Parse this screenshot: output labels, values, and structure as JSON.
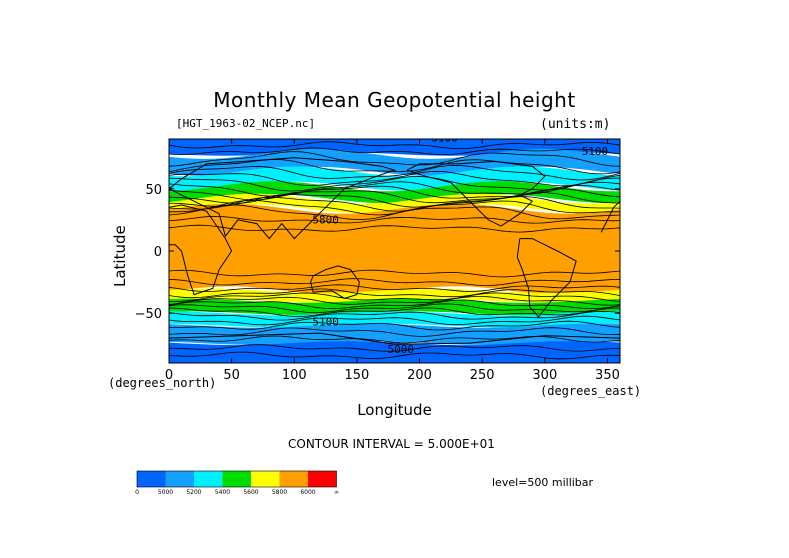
{
  "chart_data": {
    "type": "heatmap",
    "title": "Monthly Mean Geopotential height",
    "file_label": "[HGT_1963-02_NCEP.nc]",
    "units_label": "(units:m)",
    "xlabel": "Longitude",
    "ylabel": "Latitude",
    "x_unit_label": "(degrees_east)",
    "y_unit_label": "(degrees_north)",
    "xlim": [
      0,
      360
    ],
    "ylim": [
      -90,
      90
    ],
    "x_ticks": [
      0,
      50,
      100,
      150,
      200,
      250,
      300,
      350
    ],
    "y_ticks": [
      -50,
      0,
      50
    ],
    "contour_interval_label": "CONTOUR INTERVAL = 5.000E+01",
    "level_label": "level=500 millibar",
    "contour_labels": [
      "5100",
      "5800",
      "5000",
      "5100",
      "5100"
    ],
    "colorbar": {
      "colors": [
        "#0064ff",
        "#14a0ff",
        "#00f0ff",
        "#00dc00",
        "#ffff00",
        "#ffa000",
        "#ff0000"
      ],
      "tick_labels": [
        "0",
        "5000",
        "5200",
        "5400",
        "5600",
        "5800",
        "6000",
        "∞"
      ]
    },
    "zonal_bands": [
      {
        "lat_top": 90,
        "lat_bottom": 78,
        "color": "#0064ff"
      },
      {
        "lat_top": 78,
        "lat_bottom": 64,
        "color": "#14a0ff"
      },
      {
        "lat_top": 64,
        "lat_bottom": 52,
        "color": "#00f0ff"
      },
      {
        "lat_top": 52,
        "lat_bottom": 42,
        "color": "#00dc00"
      },
      {
        "lat_top": 42,
        "lat_bottom": 34,
        "color": "#ffff00"
      },
      {
        "lat_top": 34,
        "lat_bottom": -32,
        "color": "#ffa000"
      },
      {
        "lat_top": -32,
        "lat_bottom": -40,
        "color": "#ffff00"
      },
      {
        "lat_top": -40,
        "lat_bottom": -50,
        "color": "#00dc00"
      },
      {
        "lat_top": -50,
        "lat_bottom": -60,
        "color": "#00f0ff"
      },
      {
        "lat_top": -60,
        "lat_bottom": -74,
        "color": "#14a0ff"
      },
      {
        "lat_top": -74,
        "lat_bottom": -90,
        "color": "#0064ff"
      }
    ]
  }
}
